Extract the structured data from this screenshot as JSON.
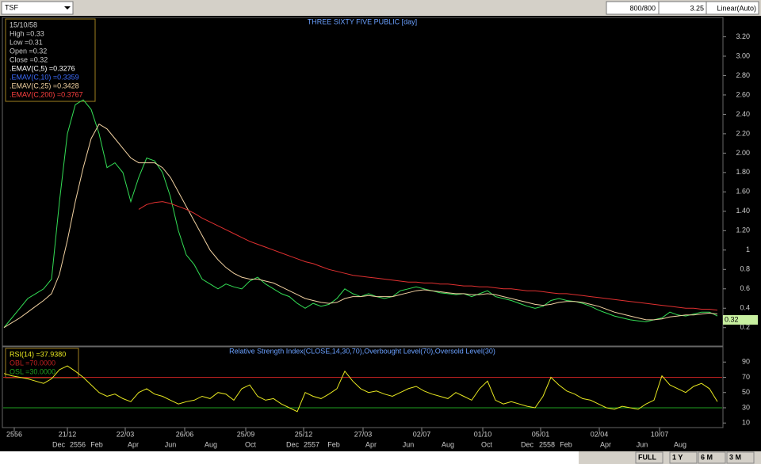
{
  "toolbar": {
    "symbol": "TSF",
    "range": "800/800",
    "price": "3.25",
    "scale": "Linear(Auto)"
  },
  "info": {
    "date": "15/10/58",
    "lines": [
      "High =0.33",
      "Low =0.31",
      "Open =0.32",
      "Close =0.32"
    ],
    "ema": [
      {
        "text": ".EMAV(C,5)  =0.3276",
        "color": "#ffffff"
      },
      {
        "text": ".EMAV(C,10)  =0.3359",
        "color": "#3c6cff"
      },
      {
        "text": ".EMAV(C,25)  =0.3428",
        "color": "#f0d0a0"
      },
      {
        "text": ".EMAV(C,200)  =0.3767",
        "color": "#ff4040"
      }
    ]
  },
  "last_price": "0.32",
  "chart_data": [
    {
      "type": "line",
      "title": "THREE SIXTY FIVE PUBLIC [day]",
      "ylim": [
        0.01,
        3.4
      ],
      "yticks": [
        0.2,
        0.4,
        0.6,
        0.8,
        1,
        {
          "value": 1.2,
          "label": "1.20"
        },
        {
          "value": 1.4,
          "label": "1.40"
        },
        {
          "value": 1.6,
          "label": "1.60"
        },
        {
          "value": 1.8,
          "label": "1.80"
        },
        {
          "value": 2,
          "label": "2.00"
        },
        {
          "value": 2.2,
          "label": "2.20"
        },
        {
          "value": 2.4,
          "label": "2.40"
        },
        {
          "value": 2.6,
          "label": "2.60"
        },
        {
          "value": 2.8,
          "label": "2.80"
        },
        {
          "value": 3,
          "label": "3.00"
        },
        {
          "value": 3.2,
          "label": "3.20"
        }
      ],
      "series": [
        {
          "name": "Close",
          "color": "#33dd55",
          "values": [
            0.2,
            0.3,
            0.4,
            0.5,
            0.55,
            0.6,
            0.7,
            1.5,
            2.2,
            2.5,
            2.55,
            2.45,
            2.2,
            1.85,
            1.9,
            1.8,
            1.5,
            1.75,
            1.95,
            1.92,
            1.8,
            1.55,
            1.2,
            0.95,
            0.85,
            0.7,
            0.65,
            0.6,
            0.65,
            0.62,
            0.6,
            0.68,
            0.72,
            0.65,
            0.6,
            0.55,
            0.52,
            0.45,
            0.4,
            0.45,
            0.42,
            0.44,
            0.5,
            0.6,
            0.55,
            0.52,
            0.55,
            0.52,
            0.5,
            0.52,
            0.58,
            0.6,
            0.62,
            0.6,
            0.58,
            0.56,
            0.55,
            0.54,
            0.55,
            0.52,
            0.55,
            0.58,
            0.52,
            0.5,
            0.48,
            0.45,
            0.42,
            0.4,
            0.42,
            0.48,
            0.5,
            0.48,
            0.47,
            0.45,
            0.42,
            0.38,
            0.35,
            0.32,
            0.3,
            0.28,
            0.27,
            0.26,
            0.28,
            0.3,
            0.36,
            0.33,
            0.32,
            0.34,
            0.36,
            0.36,
            0.32
          ]
        },
        {
          "name": "EMAV(C,25)",
          "color": "#f0d0a0",
          "values": [
            0.2,
            0.25,
            0.3,
            0.36,
            0.42,
            0.48,
            0.55,
            0.75,
            1.1,
            1.5,
            1.85,
            2.15,
            2.3,
            2.25,
            2.15,
            2.05,
            1.95,
            1.9,
            1.9,
            1.9,
            1.85,
            1.75,
            1.6,
            1.45,
            1.3,
            1.15,
            1.0,
            0.9,
            0.82,
            0.76,
            0.72,
            0.7,
            0.7,
            0.68,
            0.66,
            0.62,
            0.58,
            0.54,
            0.5,
            0.48,
            0.46,
            0.45,
            0.46,
            0.5,
            0.52,
            0.52,
            0.53,
            0.52,
            0.52,
            0.52,
            0.54,
            0.56,
            0.58,
            0.59,
            0.58,
            0.57,
            0.56,
            0.55,
            0.55,
            0.54,
            0.54,
            0.55,
            0.54,
            0.52,
            0.5,
            0.48,
            0.46,
            0.44,
            0.43,
            0.44,
            0.46,
            0.47,
            0.47,
            0.46,
            0.44,
            0.42,
            0.39,
            0.36,
            0.34,
            0.32,
            0.3,
            0.28,
            0.28,
            0.29,
            0.31,
            0.32,
            0.33,
            0.33,
            0.34,
            0.35,
            0.34
          ]
        },
        {
          "name": "EMAV(C,200)",
          "color": "#e03030",
          "values": [
            null,
            null,
            null,
            null,
            null,
            null,
            null,
            null,
            null,
            null,
            null,
            null,
            null,
            null,
            null,
            null,
            null,
            1.42,
            1.47,
            1.49,
            1.5,
            1.48,
            1.45,
            1.42,
            1.38,
            1.33,
            1.29,
            1.25,
            1.21,
            1.17,
            1.13,
            1.09,
            1.06,
            1.03,
            1.0,
            0.97,
            0.94,
            0.91,
            0.88,
            0.86,
            0.83,
            0.8,
            0.78,
            0.76,
            0.74,
            0.73,
            0.72,
            0.71,
            0.7,
            0.69,
            0.68,
            0.67,
            0.67,
            0.66,
            0.66,
            0.65,
            0.65,
            0.64,
            0.63,
            0.63,
            0.62,
            0.62,
            0.61,
            0.6,
            0.6,
            0.59,
            0.58,
            0.58,
            0.57,
            0.56,
            0.55,
            0.55,
            0.54,
            0.53,
            0.52,
            0.51,
            0.5,
            0.49,
            0.48,
            0.47,
            0.46,
            0.45,
            0.44,
            0.43,
            0.42,
            0.41,
            0.4,
            0.4,
            0.39,
            0.39,
            0.38
          ]
        }
      ]
    },
    {
      "type": "line",
      "title": "Relative Strength Index(CLOSE,14,30,70),Overbought Level(70),Oversold Level(30)",
      "ylim": [
        4,
        110
      ],
      "yticks": [
        10,
        30,
        50,
        70,
        90
      ],
      "legend": [
        "RSI(14)  =37.9380",
        "OBL  =70.0000",
        "OSL  =30.0000"
      ],
      "levels": [
        {
          "value": 70,
          "color": "#c02020"
        },
        {
          "value": 30,
          "color": "#20a020"
        }
      ],
      "series": [
        {
          "name": "RSI(14)",
          "color": "#e8e820",
          "values": [
            75,
            72,
            70,
            68,
            65,
            62,
            68,
            80,
            85,
            78,
            70,
            60,
            50,
            45,
            48,
            42,
            38,
            50,
            55,
            48,
            45,
            40,
            35,
            38,
            40,
            45,
            42,
            50,
            48,
            40,
            55,
            60,
            45,
            40,
            42,
            35,
            30,
            25,
            50,
            45,
            42,
            48,
            55,
            78,
            65,
            55,
            50,
            52,
            48,
            45,
            50,
            55,
            58,
            52,
            48,
            45,
            42,
            50,
            45,
            40,
            55,
            65,
            40,
            35,
            38,
            35,
            32,
            30,
            45,
            70,
            60,
            52,
            48,
            42,
            40,
            35,
            30,
            28,
            32,
            30,
            28,
            35,
            40,
            72,
            60,
            55,
            50,
            58,
            62,
            55,
            38
          ]
        }
      ]
    }
  ],
  "xaxis": {
    "dates": [
      "2556",
      "21/12",
      "22/03",
      "26/06",
      "25/09",
      "25/12",
      "27/03",
      "02/07",
      "01/10",
      "05/01",
      "02/04",
      "10/07"
    ],
    "months": [
      "Dec",
      "2556",
      "Feb",
      "Apr",
      "Jun",
      "Aug",
      "Oct",
      "Dec",
      "2557",
      "Feb",
      "Apr",
      "Jun",
      "Aug",
      "Oct",
      "Dec",
      "2558",
      "Feb",
      "Apr",
      "Jun",
      "Aug"
    ]
  },
  "buttons": [
    "FULL",
    "1 Y",
    "6 M",
    "3 M"
  ]
}
